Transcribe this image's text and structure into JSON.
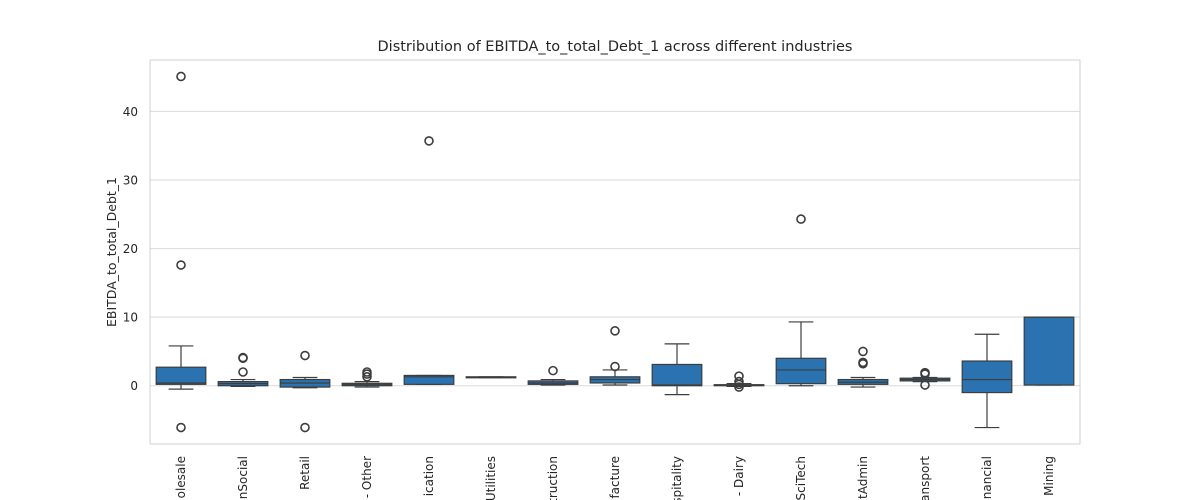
{
  "chart_data": {
    "type": "box",
    "title": "Distribution of EBITDA_to_total_Debt_1 across different industries",
    "xlabel": "",
    "ylabel": "EBITDA_to_total_Debt_1",
    "ylim": [
      -8.5,
      47.5
    ],
    "yticks": [
      0,
      10,
      20,
      30,
      40
    ],
    "grid": true,
    "box_color": "#2b73b0",
    "line_color": "#3d3d3d",
    "grid_color": "#d9d9d9",
    "categories": [
      "olesale",
      "nSocial",
      "Retail",
      "- Other",
      "ication",
      "Utilities",
      "truction",
      "facture",
      "spitality",
      "- Dairy",
      "SciTech",
      "tAdmin",
      "ansport",
      "nancial",
      "Mining"
    ],
    "boxes": [
      {
        "q1": 0.2,
        "median": 0.4,
        "q3": 2.7,
        "whislo": -0.5,
        "whishi": 5.8,
        "fliers": [
          45.1,
          17.6,
          -6.1
        ]
      },
      {
        "q1": 0.0,
        "median": 0.3,
        "q3": 0.6,
        "whislo": -0.1,
        "whishi": 0.9,
        "fliers": [
          4.0,
          4.1,
          2.0
        ]
      },
      {
        "q1": -0.2,
        "median": 0.4,
        "q3": 0.9,
        "whislo": -0.3,
        "whishi": 1.2,
        "fliers": [
          4.4,
          -6.1
        ]
      },
      {
        "q1": 0.0,
        "median": 0.15,
        "q3": 0.35,
        "whislo": -0.2,
        "whishi": 0.6,
        "fliers": [
          2.0,
          1.7,
          1.3
        ]
      },
      {
        "q1": 0.2,
        "median": 1.3,
        "q3": 1.5,
        "whislo": 0.2,
        "whishi": 1.5,
        "fliers": [
          35.7
        ]
      },
      {
        "q1": 1.2,
        "median": 1.25,
        "q3": 1.3,
        "whislo": 1.2,
        "whishi": 1.3,
        "fliers": []
      },
      {
        "q1": 0.2,
        "median": 0.4,
        "q3": 0.7,
        "whislo": 0.1,
        "whishi": 0.9,
        "fliers": [
          2.2
        ]
      },
      {
        "q1": 0.4,
        "median": 0.9,
        "q3": 1.3,
        "whislo": 0.1,
        "whishi": 2.3,
        "fliers": [
          8.0,
          2.8
        ]
      },
      {
        "q1": 0.0,
        "median": 0.1,
        "q3": 3.1,
        "whislo": -1.3,
        "whishi": 6.1,
        "fliers": []
      },
      {
        "q1": 0.0,
        "median": 0.05,
        "q3": 0.15,
        "whislo": -0.1,
        "whishi": 0.3,
        "fliers": [
          1.4,
          0.6,
          0.2,
          -0.2
        ]
      },
      {
        "q1": 0.3,
        "median": 2.3,
        "q3": 4.0,
        "whislo": 0.0,
        "whishi": 9.3,
        "fliers": [
          24.3
        ]
      },
      {
        "q1": 0.2,
        "median": 0.5,
        "q3": 0.9,
        "whislo": -0.2,
        "whishi": 1.2,
        "fliers": [
          5.0,
          3.2,
          3.4
        ]
      },
      {
        "q1": 0.7,
        "median": 0.9,
        "q3": 1.1,
        "whislo": 0.6,
        "whishi": 1.2,
        "fliers": [
          1.9,
          1.7,
          0.1
        ]
      },
      {
        "q1": -1.0,
        "median": 0.9,
        "q3": 3.6,
        "whislo": -6.1,
        "whishi": 7.5,
        "fliers": []
      },
      {
        "q1": 0.1,
        "median": 10.0,
        "q3": 10.0,
        "whislo": 0.1,
        "whishi": 10.0,
        "fliers": []
      }
    ]
  }
}
